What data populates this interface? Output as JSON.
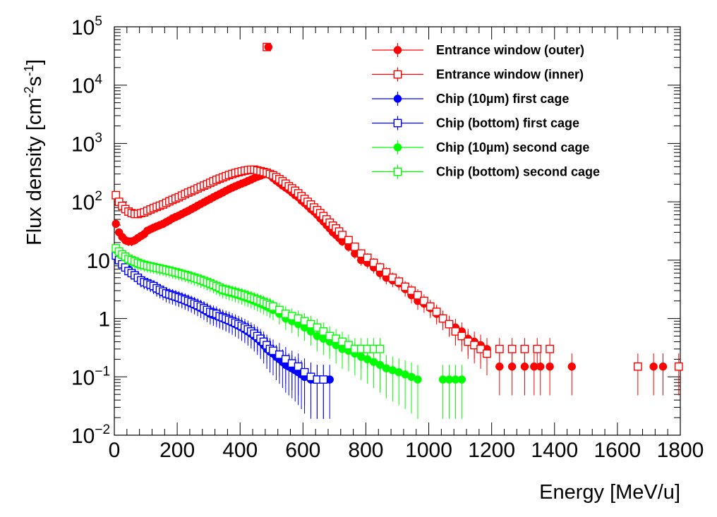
{
  "chart_data": {
    "type": "scatter",
    "title": "",
    "xlabel": "Energy [MeV/u]",
    "ylabel": "Flux density [cm⁻²s⁻¹]",
    "ylabel_parts": {
      "main": "Flux density [cm",
      "sup1": "-2",
      "mid": "s",
      "sup2": "-1",
      "end": "]"
    },
    "xlim": [
      0,
      1800
    ],
    "ylim": [
      0.01,
      100000
    ],
    "yscale": "log",
    "grid": false,
    "legend_position": "top-right",
    "x_ticks": [
      0,
      200,
      400,
      600,
      800,
      1000,
      1200,
      1400,
      1600,
      1800
    ],
    "y_ticks": [
      {
        "value": 100000,
        "base": "10",
        "exp": "5"
      },
      {
        "value": 10000,
        "base": "10",
        "exp": "4"
      },
      {
        "value": 1000,
        "base": "10",
        "exp": "3"
      },
      {
        "value": 100,
        "base": "10",
        "exp": "2"
      },
      {
        "value": 10,
        "base": "10",
        "exp": ""
      },
      {
        "value": 1,
        "base": "1",
        "exp": ""
      },
      {
        "value": 0.1,
        "base": "10",
        "exp": "−1"
      },
      {
        "value": 0.01,
        "base": "10",
        "exp": "−2"
      }
    ],
    "series": [
      {
        "name": "Entrance window (outer)",
        "color": "#ff0000",
        "marker": "filled-circle",
        "x": [
          5,
          15,
          25,
          35,
          45,
          55,
          65,
          75,
          85,
          95,
          105,
          115,
          125,
          135,
          145,
          155,
          165,
          175,
          185,
          195,
          205,
          215,
          225,
          235,
          245,
          255,
          265,
          275,
          285,
          295,
          305,
          315,
          325,
          335,
          345,
          355,
          365,
          375,
          385,
          395,
          405,
          415,
          425,
          435,
          445,
          455,
          465,
          475,
          485,
          495,
          505,
          515,
          525,
          535,
          545,
          555,
          565,
          575,
          585,
          595,
          605,
          615,
          625,
          635,
          645,
          655,
          665,
          675,
          685,
          695,
          705,
          715,
          725,
          745,
          765,
          785,
          805,
          825,
          845,
          865,
          885,
          905,
          925,
          945,
          965,
          985,
          1005,
          1025,
          1045,
          1065,
          1085,
          1105,
          1125,
          1145,
          1165,
          1185,
          1225,
          1265,
          1305,
          1335,
          1355,
          1385,
          1455,
          1715,
          1745
        ],
        "y": [
          42,
          30,
          25,
          22,
          21,
          21,
          22,
          24,
          26,
          28,
          32,
          34,
          36,
          38,
          40,
          42,
          45,
          48,
          52,
          55,
          58,
          62,
          66,
          70,
          75,
          80,
          86,
          92,
          98,
          105,
          112,
          120,
          128,
          136,
          145,
          155,
          165,
          175,
          185,
          195,
          205,
          215,
          228,
          240,
          255,
          268,
          280,
          295,
          300,
          285,
          255,
          230,
          210,
          190,
          175,
          160,
          145,
          130,
          120,
          105,
          95,
          85,
          75,
          68,
          60,
          52,
          46,
          40,
          35,
          30,
          27,
          24,
          21,
          17,
          13,
          10,
          9,
          7.5,
          6,
          5,
          4.5,
          4,
          3.2,
          2.5,
          2,
          1.8,
          1.5,
          1.2,
          1,
          0.8,
          0.7,
          0.6,
          0.45,
          0.4,
          0.35,
          0.3,
          0.15,
          0.15,
          0.15,
          0.15,
          0.15,
          0.15,
          0.15,
          0.15,
          0.15
        ]
      },
      {
        "name": "Entrance window (inner)",
        "color": "#ff0000",
        "marker": "open-square",
        "x": [
          5,
          15,
          25,
          35,
          45,
          55,
          65,
          75,
          85,
          95,
          105,
          115,
          125,
          135,
          145,
          155,
          165,
          175,
          185,
          195,
          205,
          215,
          225,
          235,
          245,
          255,
          265,
          275,
          285,
          295,
          305,
          315,
          325,
          335,
          345,
          355,
          365,
          375,
          385,
          395,
          405,
          415,
          425,
          435,
          445,
          455,
          465,
          475,
          485,
          495,
          505,
          515,
          525,
          535,
          545,
          555,
          565,
          575,
          585,
          595,
          605,
          615,
          625,
          635,
          645,
          655,
          665,
          675,
          685,
          695,
          705,
          715,
          725,
          745,
          765,
          785,
          805,
          825,
          845,
          865,
          885,
          905,
          925,
          945,
          965,
          985,
          1005,
          1025,
          1045,
          1065,
          1085,
          1105,
          1125,
          1145,
          1165,
          1185,
          1225,
          1265,
          1305,
          1345,
          1385,
          1665,
          1795
        ],
        "y": [
          130,
          100,
          85,
          75,
          68,
          64,
          62,
          62,
          64,
          66,
          70,
          74,
          78,
          82,
          86,
          90,
          96,
          102,
          108,
          114,
          120,
          128,
          136,
          144,
          152,
          160,
          170,
          180,
          190,
          200,
          212,
          225,
          238,
          250,
          262,
          275,
          288,
          300,
          312,
          322,
          332,
          342,
          350,
          355,
          356,
          345,
          335,
          325,
          315,
          300,
          285,
          265,
          245,
          225,
          205,
          185,
          170,
          155,
          140,
          125,
          112,
          100,
          90,
          80,
          72,
          64,
          57,
          50,
          44,
          39,
          35,
          31,
          27,
          22,
          17,
          13,
          11,
          9,
          7.5,
          6.2,
          5,
          4.3,
          3.5,
          3,
          2.5,
          2,
          1.6,
          1.3,
          1,
          0.8,
          0.6,
          0.5,
          0.4,
          0.35,
          0.3,
          0.25,
          0.3,
          0.3,
          0.3,
          0.3,
          0.3,
          0.15,
          0.15
        ]
      },
      {
        "name": "Chip (10µm) first cage",
        "color": "#0000ff",
        "marker": "filled-circle",
        "x": [
          5,
          15,
          25,
          35,
          45,
          55,
          65,
          75,
          85,
          95,
          105,
          115,
          125,
          135,
          145,
          155,
          165,
          175,
          185,
          195,
          205,
          215,
          225,
          235,
          245,
          255,
          265,
          275,
          285,
          295,
          305,
          315,
          325,
          335,
          345,
          355,
          365,
          375,
          385,
          395,
          405,
          415,
          425,
          435,
          445,
          455,
          465,
          475,
          485,
          495,
          505,
          515,
          525,
          535,
          545,
          555,
          565,
          575,
          585,
          595,
          605,
          625,
          645,
          665,
          685
        ],
        "y": [
          14,
          11,
          9,
          8,
          7,
          6,
          5.5,
          5,
          4.5,
          4.2,
          4,
          3.8,
          3.5,
          3.2,
          3,
          2.8,
          2.6,
          2.5,
          2.4,
          2.3,
          2.2,
          2.1,
          2,
          1.9,
          1.8,
          1.7,
          1.6,
          1.5,
          1.4,
          1.3,
          1.2,
          1.15,
          1.1,
          1.05,
          1,
          0.95,
          0.9,
          0.85,
          0.8,
          0.75,
          0.7,
          0.65,
          0.6,
          0.55,
          0.5,
          0.45,
          0.4,
          0.35,
          0.3,
          0.27,
          0.25,
          0.22,
          0.2,
          0.18,
          0.16,
          0.15,
          0.14,
          0.13,
          0.12,
          0.11,
          0.1,
          0.09,
          0.09,
          0.09,
          0.09
        ]
      },
      {
        "name": "Chip (bottom) first cage",
        "color": "#0000ff",
        "marker": "open-square",
        "x": [
          5,
          15,
          25,
          35,
          45,
          55,
          65,
          75,
          85,
          95,
          105,
          115,
          125,
          135,
          145,
          155,
          165,
          175,
          185,
          195,
          205,
          215,
          225,
          235,
          245,
          255,
          265,
          275,
          285,
          295,
          305,
          315,
          325,
          335,
          345,
          355,
          365,
          375,
          385,
          395,
          405,
          415,
          425,
          435,
          445,
          455,
          465,
          475,
          485,
          495,
          505,
          525,
          545,
          565,
          585,
          605,
          625,
          645,
          665
        ],
        "y": [
          12,
          10,
          8.5,
          7.5,
          6.5,
          6,
          5.5,
          5,
          4.5,
          4.2,
          4,
          3.8,
          3.6,
          3.3,
          3.1,
          2.9,
          2.7,
          2.6,
          2.5,
          2.4,
          2.3,
          2.2,
          2.1,
          2,
          1.9,
          1.8,
          1.7,
          1.6,
          1.5,
          1.4,
          1.3,
          1.25,
          1.2,
          1.1,
          1.05,
          1,
          0.95,
          0.9,
          0.85,
          0.8,
          0.75,
          0.7,
          0.65,
          0.6,
          0.55,
          0.5,
          0.45,
          0.4,
          0.35,
          0.3,
          0.28,
          0.24,
          0.2,
          0.17,
          0.15,
          0.12,
          0.1,
          0.09,
          0.09
        ]
      },
      {
        "name": "Chip (10µm) second cage",
        "color": "#00ff00",
        "marker": "filled-circle",
        "x": [
          5,
          15,
          25,
          35,
          45,
          55,
          65,
          75,
          85,
          95,
          105,
          115,
          125,
          135,
          145,
          155,
          165,
          175,
          185,
          195,
          205,
          215,
          225,
          235,
          245,
          255,
          265,
          275,
          285,
          295,
          305,
          315,
          325,
          335,
          345,
          355,
          365,
          375,
          385,
          395,
          405,
          415,
          425,
          435,
          445,
          455,
          465,
          475,
          485,
          495,
          505,
          525,
          545,
          565,
          585,
          605,
          625,
          645,
          665,
          685,
          705,
          725,
          745,
          765,
          785,
          805,
          825,
          845,
          865,
          885,
          905,
          925,
          945,
          965,
          1045,
          1065,
          1085,
          1105
        ],
        "y": [
          15,
          13,
          12,
          11,
          10,
          9.5,
          9,
          8.5,
          8.2,
          8,
          7.8,
          7.6,
          7.4,
          7.2,
          7,
          6.8,
          6.6,
          6.4,
          6.2,
          6,
          5.8,
          5.6,
          5.4,
          5.2,
          5,
          4.8,
          4.6,
          4.4,
          4.2,
          4,
          3.8,
          3.6,
          3.4,
          3.2,
          3,
          2.9,
          2.8,
          2.7,
          2.6,
          2.5,
          2.4,
          2.3,
          2.2,
          2.1,
          2,
          1.9,
          1.8,
          1.7,
          1.6,
          1.5,
          1.4,
          1.2,
          1,
          0.9,
          0.8,
          0.7,
          0.6,
          0.5,
          0.45,
          0.4,
          0.35,
          0.3,
          0.28,
          0.25,
          0.22,
          0.2,
          0.18,
          0.16,
          0.14,
          0.13,
          0.12,
          0.11,
          0.1,
          0.09,
          0.09,
          0.09,
          0.09,
          0.09
        ]
      },
      {
        "name": "Chip (bottom) second cage",
        "color": "#00ff00",
        "marker": "open-square",
        "x": [
          5,
          15,
          25,
          35,
          45,
          55,
          65,
          75,
          85,
          95,
          105,
          115,
          125,
          135,
          145,
          155,
          165,
          175,
          185,
          195,
          205,
          215,
          225,
          235,
          245,
          255,
          265,
          275,
          285,
          295,
          305,
          315,
          325,
          335,
          345,
          355,
          365,
          375,
          385,
          395,
          405,
          415,
          425,
          435,
          445,
          455,
          465,
          475,
          485,
          495,
          505,
          525,
          545,
          565,
          585,
          605,
          625,
          645,
          665,
          685,
          705,
          725,
          745,
          765,
          785,
          805,
          825,
          845
        ],
        "y": [
          16,
          14,
          12.5,
          11.5,
          10.5,
          10,
          9.5,
          9,
          8.6,
          8.3,
          8,
          7.8,
          7.6,
          7.4,
          7.2,
          7,
          6.8,
          6.6,
          6.4,
          6.2,
          6,
          5.8,
          5.6,
          5.4,
          5.2,
          5,
          4.8,
          4.6,
          4.4,
          4.2,
          4,
          3.8,
          3.6,
          3.4,
          3.2,
          3.1,
          3,
          2.9,
          2.8,
          2.7,
          2.6,
          2.5,
          2.4,
          2.3,
          2.2,
          2.1,
          2,
          1.9,
          1.8,
          1.7,
          1.6,
          1.4,
          1.2,
          1.1,
          1,
          0.9,
          0.8,
          0.7,
          0.6,
          0.5,
          0.45,
          0.4,
          0.35,
          0.3,
          0.3,
          0.3,
          0.3,
          0.3
        ]
      }
    ],
    "annotation_points": [
      {
        "series": "Entrance window (inner)",
        "x": 485,
        "y": 45000,
        "marker": "open-square"
      },
      {
        "series": "Entrance window (outer)",
        "x": 490,
        "y": 45000,
        "marker": "filled-circle"
      }
    ]
  }
}
